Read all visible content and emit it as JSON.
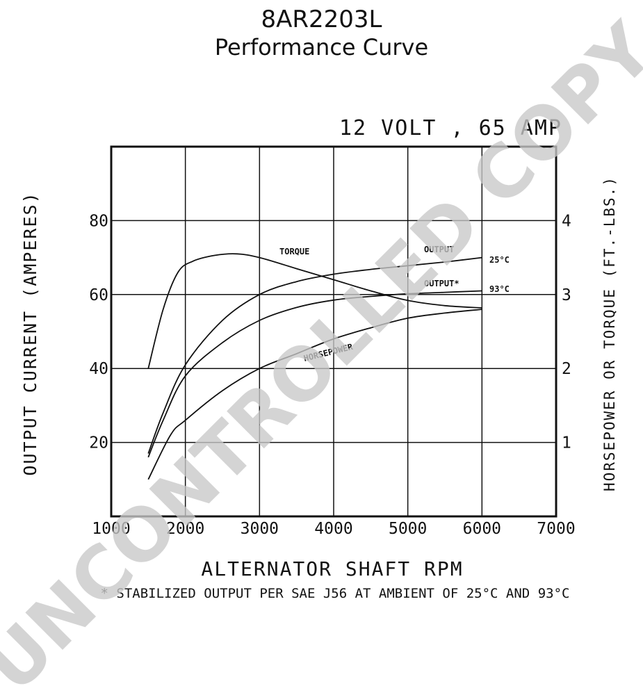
{
  "header": {
    "title": "8AR2203L",
    "subtitle": "Performance Curve"
  },
  "rating_label": "12 VOLT , 65 AMP",
  "watermark_text": "UNCONTROLLED COPY",
  "footnote": "* STABILIZED OUTPUT PER SAE J56 AT AMBIENT OF 25°C AND 93°C",
  "colors": {
    "ink": "#111111",
    "grid": "#111111",
    "watermark": "#c8c8c8"
  },
  "chart_data": {
    "type": "line",
    "title": "12 VOLT , 65 AMP",
    "xlabel": "ALTERNATOR SHAFT RPM",
    "ylabel": "OUTPUT CURRENT (AMPERES)",
    "y2label": "HORSEPOWER OR TORQUE (FT.-LBS.)",
    "xlim": [
      1000,
      7000
    ],
    "ylim": [
      0,
      100
    ],
    "y2lim": [
      0,
      5
    ],
    "grid": true,
    "x_ticks": [
      "1000",
      "2000",
      "3000",
      "4000",
      "5000",
      "6000",
      "7000"
    ],
    "y_ticks": [
      "20",
      "40",
      "60",
      "80"
    ],
    "y2_ticks": [
      "1",
      "2",
      "3",
      "4"
    ],
    "series": [
      {
        "name": "OUTPUT",
        "end_label": "25°C",
        "axis": "left",
        "x": [
          1500,
          1700,
          2000,
          2500,
          3000,
          3500,
          4000,
          4500,
          5000,
          5500,
          6000
        ],
        "y": [
          17,
          28,
          41,
          53,
          60,
          63.5,
          65.5,
          66.8,
          67.8,
          68.8,
          70
        ]
      },
      {
        "name": "OUTPUT*",
        "end_label": "93°C",
        "axis": "left",
        "x": [
          1500,
          1700,
          2000,
          2500,
          3000,
          3500,
          4000,
          4500,
          5000,
          5500,
          6000
        ],
        "y": [
          16,
          26,
          38,
          47,
          53,
          56.5,
          58.5,
          59.5,
          60.2,
          60.6,
          61
        ]
      },
      {
        "name": "TORQUE",
        "axis": "right",
        "x": [
          1500,
          1700,
          1900,
          2100,
          2400,
          2700,
          3000,
          3500,
          4000,
          4500,
          5000,
          5500,
          6000
        ],
        "y": [
          2.0,
          2.8,
          3.3,
          3.45,
          3.53,
          3.55,
          3.5,
          3.35,
          3.2,
          3.05,
          2.92,
          2.85,
          2.82
        ]
      },
      {
        "name": "HORSEPOWER",
        "axis": "right",
        "x": [
          1500,
          1800,
          2000,
          2500,
          3000,
          3500,
          4000,
          4500,
          5000,
          5500,
          6000
        ],
        "y": [
          0.5,
          1.1,
          1.3,
          1.7,
          2.0,
          2.2,
          2.4,
          2.55,
          2.68,
          2.75,
          2.8
        ]
      }
    ]
  }
}
